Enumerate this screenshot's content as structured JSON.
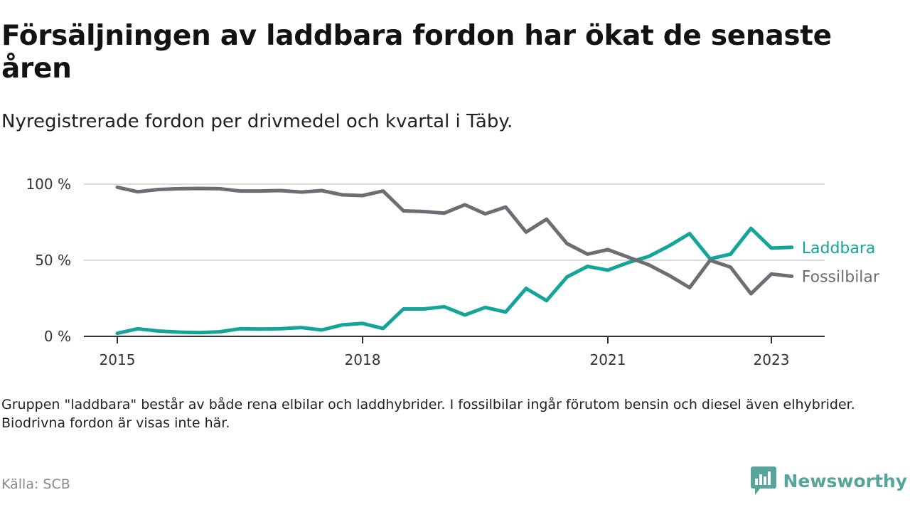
{
  "title": "Försäljningen av laddbara fordon har ökat de senaste åren",
  "subtitle": "Nyregistrerade fordon per drivmedel och kvartal i Täby.",
  "note": "Gruppen \"laddbara\" består av både rena elbilar och laddhybrider. I fossilbilar ingår förutom bensin och diesel även elhybrider. Biodrivna fordon är visas inte här.",
  "source": "Källa: SCB",
  "brand": {
    "name": "Newsworthy",
    "color": "#55a59a"
  },
  "chart_data": {
    "type": "line",
    "title": "Försäljningen av laddbara fordon har ökat de senaste åren",
    "subtitle": "Nyregistrerade fordon per drivmedel och kvartal i Täby.",
    "xlabel": "",
    "ylabel": "",
    "ylim": [
      0,
      100
    ],
    "y_ticks": [
      0,
      50,
      100
    ],
    "y_tick_labels": [
      "0 %",
      "50 %",
      "100 %"
    ],
    "x_ticks": [
      2015,
      2018,
      2021,
      2023
    ],
    "x_tick_labels": [
      "2015",
      "2018",
      "2021",
      "2023"
    ],
    "x": [
      2015.0,
      2015.25,
      2015.5,
      2015.75,
      2016.0,
      2016.25,
      2016.5,
      2016.75,
      2017.0,
      2017.25,
      2017.5,
      2017.75,
      2018.0,
      2018.25,
      2018.5,
      2018.75,
      2019.0,
      2019.25,
      2019.5,
      2019.75,
      2020.0,
      2020.25,
      2020.5,
      2020.75,
      2021.0,
      2021.25,
      2021.5,
      2021.75,
      2022.0,
      2022.25,
      2022.5,
      2022.75,
      2023.0,
      2023.25
    ],
    "grid": true,
    "series": [
      {
        "name": "Laddbara",
        "color": "#13a59a",
        "values": [
          2,
          5,
          3.5,
          2.8,
          2.5,
          3,
          5,
          4.8,
          5,
          5.8,
          4.2,
          7.5,
          8.5,
          5.2,
          18,
          18,
          19.5,
          14,
          19,
          16,
          31.5,
          23.5,
          39,
          46,
          43.5,
          48.5,
          52.5,
          59.5,
          67.5,
          51,
          54,
          71,
          58,
          58.5
        ]
      },
      {
        "name": "Fossilbilar",
        "color": "#6e6d75",
        "values": [
          98,
          95,
          96.5,
          97,
          97.2,
          97,
          95.5,
          95.5,
          95.8,
          94.8,
          95.8,
          93,
          92.5,
          95.5,
          82.5,
          82,
          81,
          86.5,
          80.5,
          85,
          68.5,
          77,
          61,
          54,
          57,
          52,
          47,
          40,
          32,
          50,
          45.5,
          28,
          41,
          39.5
        ]
      }
    ]
  }
}
